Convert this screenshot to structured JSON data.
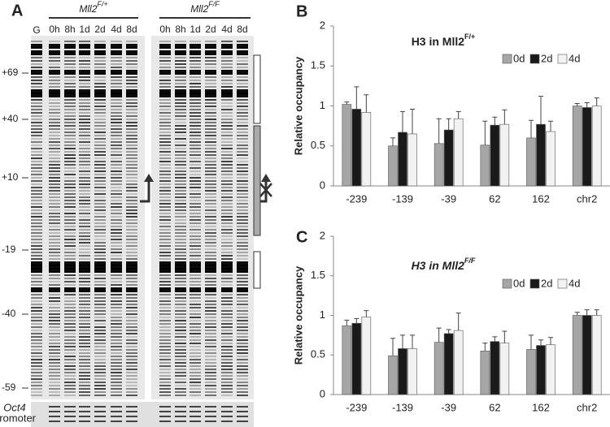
{
  "gel": {
    "panel_label": "A",
    "marker_lane": "G",
    "groups": [
      {
        "label": "Mll2",
        "superscript": "F/+",
        "lanes": [
          "0h",
          "8h",
          "1d",
          "2d",
          "4d",
          "8d"
        ]
      },
      {
        "label": "Mll2",
        "superscript": "F/F",
        "lanes": [
          "0h",
          "8h",
          "1d",
          "2d",
          "4d",
          "8d"
        ]
      }
    ],
    "positions": [
      "+69",
      "+40",
      "+10",
      "-19",
      "-40",
      "-59"
    ],
    "footer": [
      "Oct4",
      "promoter"
    ]
  },
  "chart_data": [
    {
      "type": "bar",
      "panel_label": "B",
      "title": "H3 in Mll2",
      "title_superscript": "F/+",
      "ylabel": "Relative occupancy",
      "categories": [
        "-239",
        "-139",
        "-39",
        "62",
        "162",
        "chr2"
      ],
      "series": [
        {
          "name": "0d",
          "color": "#a6a6a6",
          "values": [
            1.02,
            0.5,
            0.53,
            0.51,
            0.6,
            1.0
          ],
          "errors": [
            0.03,
            0.1,
            0.31,
            0.3,
            0.22,
            0.03
          ]
        },
        {
          "name": "2d",
          "color": "#1a1a1a",
          "values": [
            0.96,
            0.67,
            0.7,
            0.76,
            0.77,
            0.98
          ],
          "errors": [
            0.28,
            0.26,
            0.14,
            0.1,
            0.35,
            0.06
          ]
        },
        {
          "name": "4d",
          "color": "#f2f2f2",
          "values": [
            0.92,
            0.65,
            0.84,
            0.77,
            0.68,
            1.0
          ],
          "errors": [
            0.22,
            0.31,
            0.09,
            0.18,
            0.13,
            0.1
          ]
        }
      ],
      "ylim": [
        0,
        2
      ],
      "yticks": [
        0,
        0.5,
        1,
        1.5,
        2
      ],
      "legend": "upper right"
    },
    {
      "type": "bar",
      "panel_label": "C",
      "title": "H3 in Mll2",
      "title_superscript": "F/F",
      "ylabel": "Relative occupancy",
      "categories": [
        "-239",
        "-139",
        "-39",
        "62",
        "162",
        "chr2"
      ],
      "series": [
        {
          "name": "0d",
          "color": "#a6a6a6",
          "values": [
            0.87,
            0.49,
            0.66,
            0.55,
            0.57,
            1.0
          ],
          "errors": [
            0.07,
            0.22,
            0.18,
            0.1,
            0.18,
            0.04
          ]
        },
        {
          "name": "2d",
          "color": "#1a1a1a",
          "values": [
            0.9,
            0.58,
            0.77,
            0.67,
            0.62,
            1.0
          ],
          "errors": [
            0.06,
            0.17,
            0.05,
            0.06,
            0.07,
            0.07
          ]
        },
        {
          "name": "4d",
          "color": "#f2f2f2",
          "values": [
            0.98,
            0.58,
            0.81,
            0.65,
            0.63,
            1.0
          ],
          "errors": [
            0.08,
            0.17,
            0.22,
            0.15,
            0.09,
            0.07
          ]
        }
      ],
      "ylim": [
        0,
        2
      ],
      "yticks": [
        0,
        0.5,
        1,
        1.5,
        2
      ],
      "legend": "upper right"
    }
  ]
}
